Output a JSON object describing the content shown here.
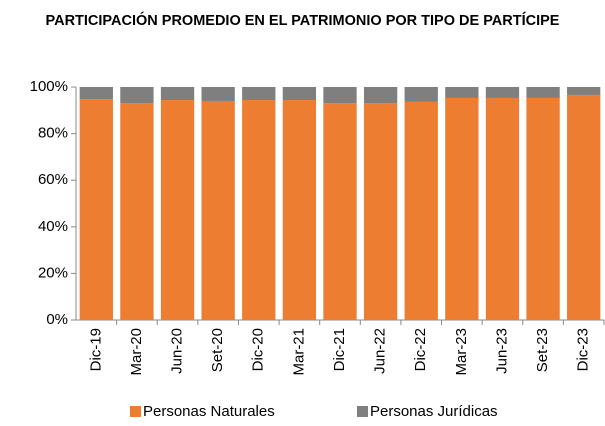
{
  "chart_data": {
    "type": "stacked_bar",
    "title": "PARTICIPACIÓN PROMEDIO EN EL PATRIMONIO POR TIPO DE PARTÍCIPE",
    "categories": [
      "Dic-19",
      "Mar-20",
      "Jun-20",
      "Set-20",
      "Dic-20",
      "Mar-21",
      "Dic-21",
      "Jun-22",
      "Dic-22",
      "Mar-23",
      "Jun-23",
      "Set-23",
      "Dic-23"
    ],
    "series": [
      {
        "name": "Personas Naturales",
        "color": "#ED7D31",
        "values": [
          94.8,
          93.1,
          94.4,
          94.0,
          94.4,
          94.4,
          93.1,
          93.1,
          93.6,
          95.3,
          95.3,
          95.3,
          96.6
        ]
      },
      {
        "name": "Personas Jurídicas",
        "color": "#7F7F7F",
        "values": [
          5.2,
          6.9,
          5.6,
          6.0,
          5.6,
          5.6,
          6.9,
          6.9,
          6.4,
          4.7,
          4.7,
          4.7,
          3.4
        ]
      }
    ],
    "ylim": [
      0,
      100
    ],
    "yticks": [
      {
        "value": 0,
        "label": "0%"
      },
      {
        "value": 20,
        "label": "20%"
      },
      {
        "value": 40,
        "label": "40%"
      },
      {
        "value": 60,
        "label": "60%"
      },
      {
        "value": 80,
        "label": "80%"
      },
      {
        "value": 100,
        "label": "100%"
      }
    ],
    "legend": "bottom"
  }
}
